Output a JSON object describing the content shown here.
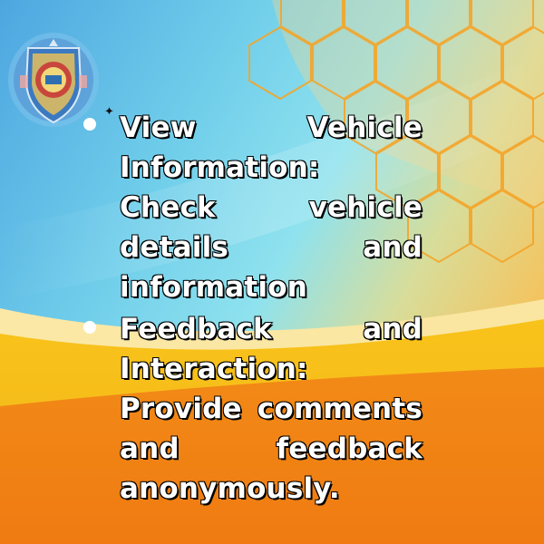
{
  "bullets": [
    {
      "text": "View Vehicle Information: Check vehicle details and information"
    },
    {
      "text": "Feedback and Interaction: Provide comments and feedback anonymously."
    }
  ],
  "colors": {
    "sky_blue": "#5ab2e3",
    "light_cyan": "#7fd9ec",
    "yellow_band": "#f6c21a",
    "orange_base": "#f07f16",
    "hex_outline": "#f4a52a",
    "text_fill": "#ffffff",
    "text_outline": "#000000"
  },
  "icons": {
    "logo": "school-crest-logo",
    "bullet": "bullet-dot-icon",
    "sparkle": "sparkle-icon"
  }
}
